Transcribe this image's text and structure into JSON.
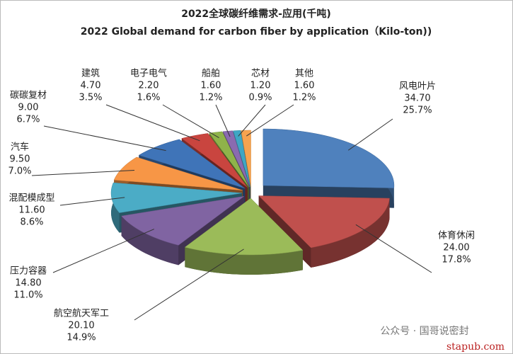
{
  "chart_data": {
    "type": "pie3d",
    "title": "2022全球碳纤维需求-应用(千吨)",
    "subtitle": "2022 Global demand for carbon fiber by application（Kilo-ton))",
    "categories": [
      "风电叶片",
      "体育休闲",
      "航空航天军工",
      "压力容器",
      "混配模成型",
      "汽车",
      "碳碳复材",
      "建筑",
      "电子电气",
      "船舶",
      "芯材",
      "其他"
    ],
    "values": [
      34.7,
      24.0,
      20.1,
      14.8,
      11.6,
      9.5,
      9.0,
      4.7,
      2.2,
      1.6,
      1.2,
      1.6
    ],
    "value_labels": [
      "34.70",
      "24.00",
      "20.10",
      "14.80",
      "11.60",
      "9.50",
      "9.00",
      "4.70",
      "2.20",
      "1.60",
      "1.20",
      "1.60"
    ],
    "percent_labels": [
      "25.7%",
      "17.8%",
      "14.9%",
      "11.0%",
      "8.6%",
      "7.0%",
      "6.7%",
      "3.5%",
      "1.6%",
      "1.2%",
      "0.9%",
      "1.2%"
    ],
    "colors": [
      "#4f81bd",
      "#c0504d",
      "#9bbb59",
      "#8064a2",
      "#4bacc6",
      "#f79646",
      "#3f74b8",
      "#c9453f",
      "#8fb34a",
      "#8a6bb0",
      "#3fa6c4",
      "#f7a34f"
    ],
    "watermark": "公众号 · 国哥说密封",
    "site": "stapub.com"
  }
}
